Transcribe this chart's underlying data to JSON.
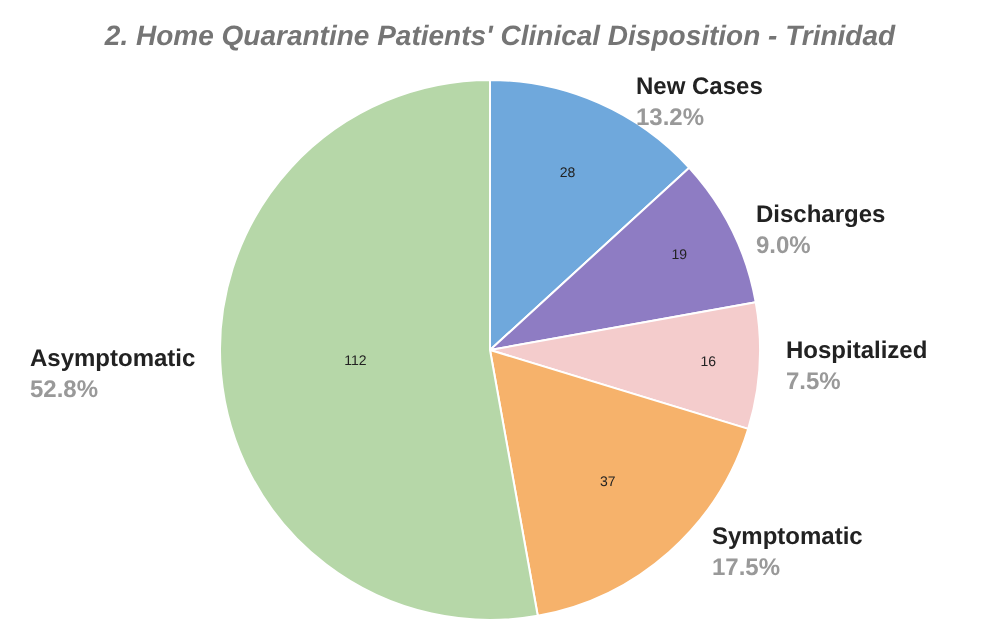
{
  "chart_data": {
    "type": "pie",
    "title": "2. Home Quarantine Patients' Clinical Disposition - Trinidad",
    "categories": [
      "New Cases",
      "Discharges",
      "Hospitalized",
      "Symptomatic",
      "Asymptomatic"
    ],
    "values": [
      28,
      19,
      16,
      37,
      112
    ],
    "colors": [
      "#6fa8dc",
      "#8e7cc3",
      "#f4cccc",
      "#f6b26b",
      "#b6d7a8"
    ],
    "annotations": [
      "13.2%",
      "9.0%",
      "7.5%",
      "17.5%",
      "52.8%"
    ],
    "data_labels": true,
    "legend": false
  }
}
